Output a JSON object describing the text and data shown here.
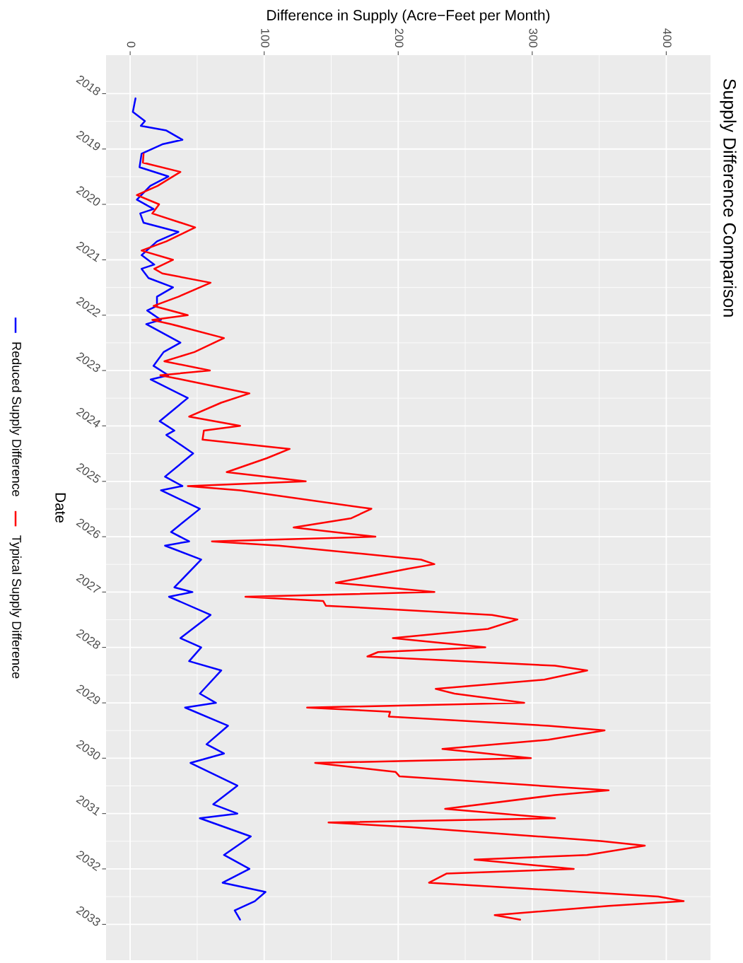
{
  "chart_data": {
    "type": "line",
    "orientation": "horizontal",
    "title": "Supply Difference Comparison",
    "ylabel": "Date",
    "xlabel": "Difference in Supply (Acre−Feet per Month)",
    "ylim": [
      "2033-08-25",
      "2017-04-22"
    ],
    "yticks": [
      "2018",
      "2019",
      "2020",
      "2021",
      "2022",
      "2023",
      "2024",
      "2025",
      "2026",
      "2027",
      "2028",
      "2029",
      "2030",
      "2031",
      "2032",
      "2033"
    ],
    "xlim": [
      -18,
      433
    ],
    "xticks": [
      0,
      100,
      200,
      300,
      400
    ],
    "grid": true,
    "legend": "left",
    "series": [
      {
        "name": "Reduced Supply Difference",
        "color": "#0000ff",
        "x": [
          "2018-02",
          "2018-05",
          "2018-07",
          "2018-08",
          "2018-09",
          "2018-11",
          "2018-12",
          "2019-02",
          "2019-05",
          "2019-07",
          "2019-09",
          "2019-12",
          "2020-02",
          "2020-03",
          "2020-05",
          "2020-07",
          "2020-09",
          "2020-12",
          "2021-02",
          "2021-03",
          "2021-05",
          "2021-07",
          "2021-09",
          "2021-11",
          "2021-12",
          "2022-02",
          "2022-03",
          "2022-07",
          "2022-09",
          "2022-12",
          "2023-02",
          "2023-03",
          "2023-07",
          "2023-12",
          "2024-02",
          "2024-03",
          "2024-07",
          "2024-12",
          "2025-02",
          "2025-03",
          "2025-07",
          "2025-12",
          "2026-02",
          "2026-03",
          "2026-06",
          "2026-12",
          "2027-01",
          "2027-02",
          "2027-06",
          "2027-11",
          "2028-01",
          "2028-04",
          "2028-06",
          "2028-11",
          "2029-01",
          "2029-02",
          "2029-06",
          "2029-10",
          "2029-12",
          "2030-02",
          "2030-07",
          "2030-11",
          "2031-01",
          "2031-02",
          "2031-06",
          "2031-10",
          "2032-01",
          "2032-04",
          "2032-06",
          "2032-08",
          "2032-10",
          "2032-12"
        ],
        "values": [
          4,
          2,
          11,
          8,
          27,
          39,
          24,
          8.5,
          7,
          28.5,
          15,
          5,
          17.5,
          7.5,
          10,
          36,
          20,
          8.5,
          18,
          8.5,
          13.7,
          32,
          20,
          20,
          12.7,
          23,
          12,
          37.5,
          25,
          17.4,
          28.5,
          15.3,
          43,
          22,
          33,
          27,
          47,
          26,
          39,
          23,
          52,
          30.5,
          44,
          26,
          53,
          33,
          46.5,
          29,
          60,
          37.5,
          53,
          44,
          68,
          52,
          64,
          41,
          73,
          57,
          70,
          45,
          80,
          62,
          80,
          52,
          90,
          70,
          89,
          69,
          101,
          93,
          78,
          82
        ]
      },
      {
        "name": "Typical Supply Difference",
        "color": "#ff0000",
        "x": [
          "2019-02",
          "2019-04",
          "2019-06",
          "2019-09",
          "2019-11",
          "2020-01",
          "2020-03",
          "2020-06",
          "2020-09",
          "2020-11",
          "2021-01",
          "2021-03",
          "2021-04",
          "2021-06",
          "2021-09",
          "2021-11",
          "2022-01",
          "2022-02",
          "2022-03",
          "2022-06",
          "2022-09",
          "2022-11",
          "2023-01",
          "2023-02",
          "2023-03",
          "2023-06",
          "2023-08",
          "2023-11",
          "2024-01",
          "2024-02",
          "2024-04",
          "2024-06",
          "2024-08",
          "2024-11",
          "2025-01",
          "2025-02",
          "2025-03",
          "2025-07",
          "2025-09",
          "2025-11",
          "2026-01",
          "2026-02",
          "2026-03",
          "2026-06",
          "2026-07",
          "2026-08",
          "2026-11",
          "2027-01",
          "2027-02",
          "2027-03",
          "2027-04",
          "2027-06",
          "2027-07",
          "2027-09",
          "2027-11",
          "2028-01",
          "2028-02",
          "2028-03",
          "2028-05",
          "2028-06",
          "2028-08",
          "2028-10",
          "2028-11",
          "2029-01",
          "2029-02",
          "2029-03",
          "2029-04",
          "2029-06",
          "2029-07",
          "2029-09",
          "2029-11",
          "2030-01",
          "2030-02",
          "2030-04",
          "2030-05",
          "2030-08",
          "2030-09",
          "2030-12",
          "2031-02",
          "2031-03",
          "2031-04",
          "2031-07",
          "2031-08",
          "2031-10",
          "2031-11",
          "2032-01",
          "2032-02",
          "2032-04",
          "2032-07",
          "2032-08",
          "2032-09",
          "2032-11",
          "2032-12"
        ],
        "values": [
          10,
          9.5,
          37.5,
          20.5,
          5,
          21.6,
          16.5,
          48.5,
          27,
          8.5,
          32,
          18,
          24,
          60,
          36,
          17.5,
          43,
          16.5,
          30.5,
          70,
          48,
          25.5,
          59.5,
          22.5,
          38.5,
          89,
          68,
          44,
          82,
          55,
          54,
          119,
          102,
          72,
          131,
          43,
          82,
          180,
          165,
          122,
          183,
          61,
          111,
          217,
          227,
          207,
          153.5,
          227,
          86,
          144,
          146,
          270,
          289,
          267,
          196,
          265,
          185,
          177,
          317,
          341,
          309,
          228,
          242,
          294,
          132,
          194,
          193,
          312,
          354,
          312,
          233,
          299,
          138,
          198,
          201,
          357,
          317,
          235,
          317,
          148,
          210,
          351,
          384,
          341,
          257,
          331,
          236,
          223,
          394,
          413,
          357,
          272,
          291
        ]
      }
    ]
  }
}
